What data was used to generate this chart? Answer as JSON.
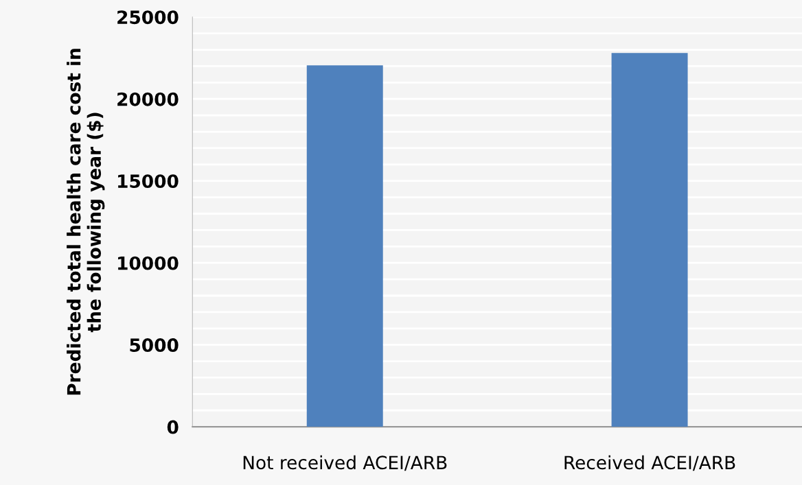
{
  "chart_data": {
    "type": "bar",
    "ylabel": "Predicted total health care cost in\nthe following year ($)",
    "categories": [
      "Not received ACEI/ARB",
      "Received ACEI/ARB"
    ],
    "values": [
      22050,
      22800
    ],
    "color": "#4f81bd",
    "ylim": [
      0,
      25000
    ],
    "yticks": [
      0,
      {
        "value": 1000,
        "label": null
      },
      {
        "value": 2000,
        "label": null
      },
      {
        "value": 3000,
        "label": null
      },
      {
        "value": 4000,
        "label": null
      },
      5000,
      {
        "value": 6000,
        "label": null
      },
      {
        "value": 7000,
        "label": null
      },
      {
        "value": 8000,
        "label": null
      },
      {
        "value": 9000,
        "label": null
      },
      10000,
      {
        "value": 11000,
        "label": null
      },
      {
        "value": 12000,
        "label": null
      },
      {
        "value": 13000,
        "label": null
      },
      {
        "value": 14000,
        "label": null
      },
      15000,
      {
        "value": 16000,
        "label": null
      },
      {
        "value": 17000,
        "label": null
      },
      {
        "value": 18000,
        "label": null
      },
      {
        "value": 19000,
        "label": null
      },
      20000,
      {
        "value": 21000,
        "label": null
      },
      {
        "value": 22000,
        "label": null
      },
      {
        "value": 23000,
        "label": null
      },
      {
        "value": 24000,
        "label": null
      },
      25000
    ],
    "grid": "y"
  }
}
